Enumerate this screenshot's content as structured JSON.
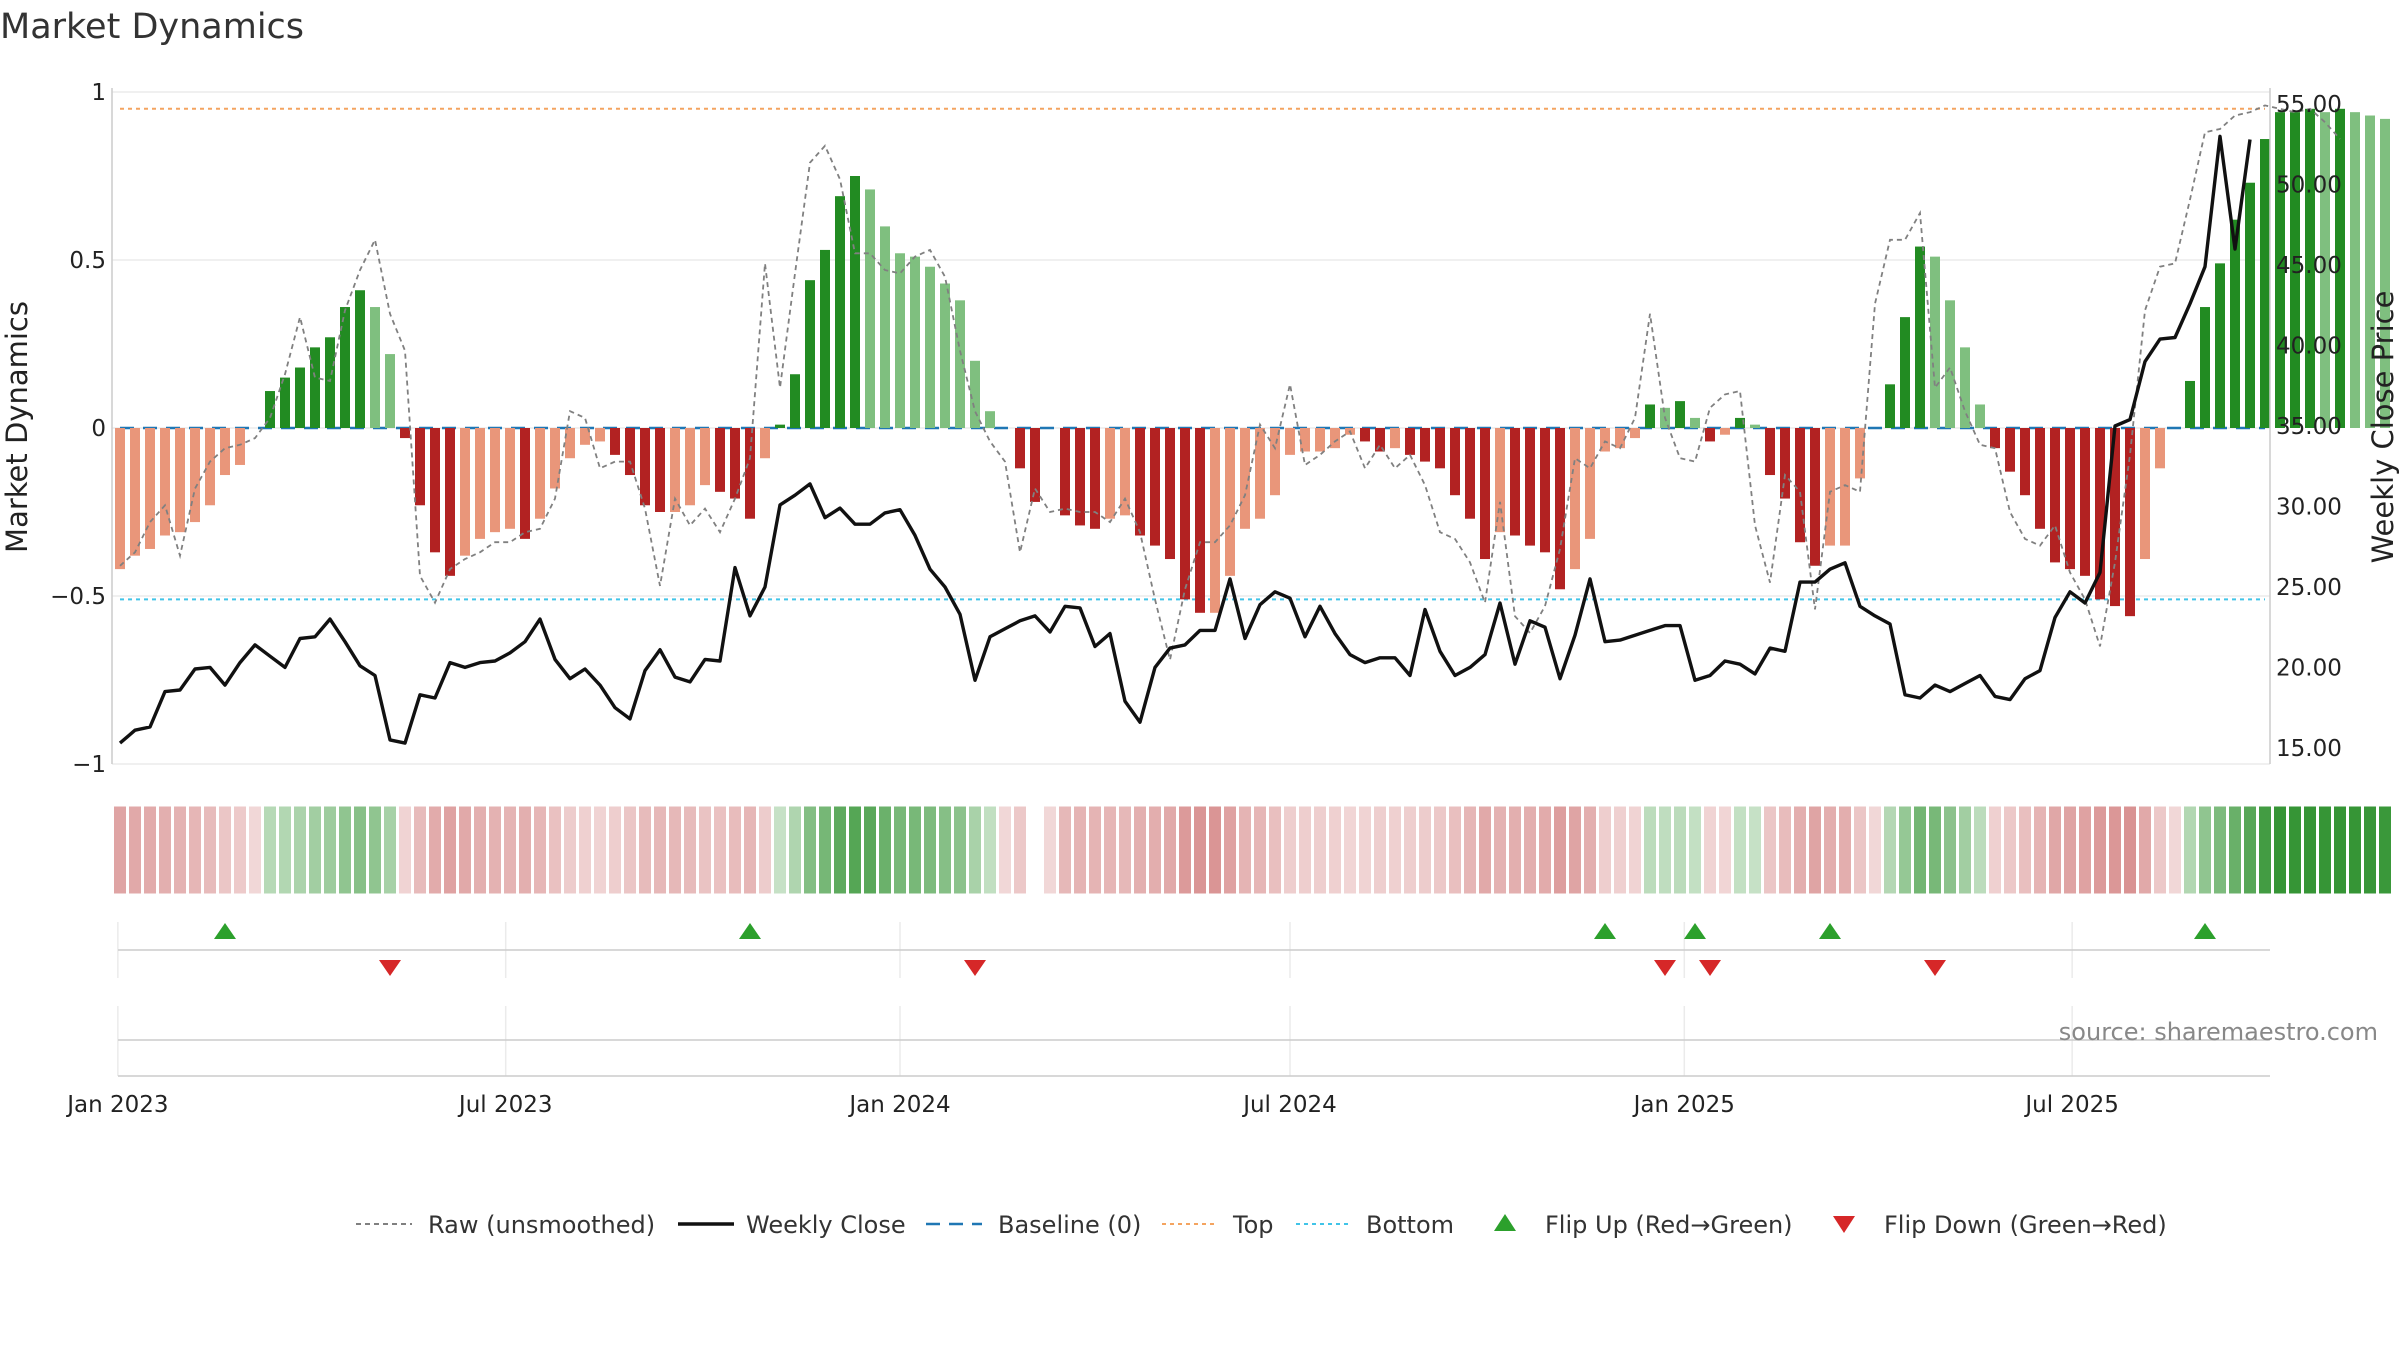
{
  "title": "Market Dynamics",
  "source": "source: sharemaestro.com",
  "chart_data": {
    "type": "bar",
    "x_start": "2023-01-02",
    "x_interval": "weekly",
    "x_ticks": [
      "Jan 2023",
      "Jul 2023",
      "Jan 2024",
      "Jul 2024",
      "Jan 2025",
      "Jul 2025"
    ],
    "y_left": {
      "label": "Market Dynamics",
      "range": [
        -1,
        1
      ],
      "ticks": [
        "1",
        "0.5",
        "0",
        "−0.5",
        "−1"
      ],
      "tick_values": [
        1,
        0.5,
        0,
        -0.5,
        -1
      ]
    },
    "y_right": {
      "label": "Weekly Close Price",
      "range": [
        14.0,
        56.0
      ],
      "ticks": [
        "55.00",
        "50.00",
        "45.00",
        "40.00",
        "35.00",
        "30.00",
        "25.00",
        "20.00",
        "15.00"
      ],
      "tick_values": [
        55,
        50,
        45,
        40,
        35,
        30,
        25,
        20,
        15
      ]
    },
    "reference_lines": {
      "baseline": 0,
      "top": 0.95,
      "bottom": -0.51
    },
    "colors": {
      "strong_red": "#B22222",
      "light_red": "#E9967A",
      "strong_green": "#228B22",
      "light_green": "#7FBF7F",
      "raw": "#808080",
      "close": "#111111",
      "baseline": "#1F77B4",
      "top": "#F4A460",
      "bottom": "#40C4E8",
      "flip_up": "#2CA02C",
      "flip_down": "#D62728"
    },
    "smoothed": [
      -0.42,
      -0.38,
      -0.36,
      -0.32,
      -0.31,
      -0.28,
      -0.23,
      -0.14,
      -0.11,
      0,
      0.11,
      0.15,
      0.18,
      0.24,
      0.27,
      0.36,
      0.41,
      0.36,
      0.22,
      -0.03,
      -0.23,
      -0.37,
      -0.44,
      -0.38,
      -0.33,
      -0.31,
      -0.3,
      -0.33,
      -0.27,
      -0.18,
      -0.09,
      -0.05,
      -0.04,
      -0.08,
      -0.14,
      -0.23,
      -0.25,
      -0.25,
      -0.23,
      -0.17,
      -0.19,
      -0.21,
      -0.27,
      -0.09,
      0.01,
      0.16,
      0.44,
      0.53,
      0.69,
      0.75,
      0.71,
      0.6,
      0.52,
      0.51,
      0.48,
      0.43,
      0.38,
      0.2,
      0.05,
      0,
      -0.12,
      -0.22,
      0,
      -0.26,
      -0.29,
      -0.3,
      -0.27,
      -0.26,
      -0.32,
      -0.35,
      -0.39,
      -0.51,
      -0.55,
      -0.55,
      -0.44,
      -0.3,
      -0.27,
      -0.2,
      -0.08,
      -0.07,
      -0.07,
      -0.06,
      -0.02,
      -0.04,
      -0.07,
      -0.06,
      -0.08,
      -0.1,
      -0.12,
      -0.2,
      -0.27,
      -0.39,
      -0.31,
      -0.32,
      -0.35,
      -0.37,
      -0.48,
      -0.42,
      -0.33,
      -0.07,
      -0.06,
      -0.03,
      0.07,
      0.06,
      0.08,
      0.03,
      -0.04,
      -0.02,
      0.03,
      0.01,
      -0.14,
      -0.21,
      -0.34,
      -0.41,
      -0.35,
      -0.35,
      -0.15,
      0,
      0.13,
      0.33,
      0.54,
      0.51,
      0.38,
      0.24,
      0.07,
      -0.06,
      -0.13,
      -0.2,
      -0.3,
      -0.4,
      -0.42,
      -0.44,
      -0.51,
      -0.53,
      -0.56,
      -0.39,
      -0.12,
      0,
      0.14,
      0.36,
      0.49,
      0.62,
      0.73,
      0.86,
      0.94,
      0.94,
      0.95,
      0.94,
      0.95,
      0.94,
      0.93,
      0.92
    ],
    "raw": [
      -0.41,
      -0.37,
      -0.28,
      -0.23,
      -0.38,
      -0.18,
      -0.1,
      -0.06,
      -0.05,
      -0.03,
      0.03,
      0.16,
      0.33,
      0.15,
      0.14,
      0.35,
      0.47,
      0.56,
      0.34,
      0.23,
      -0.44,
      -0.52,
      -0.42,
      -0.39,
      -0.37,
      -0.34,
      -0.34,
      -0.31,
      -0.3,
      -0.21,
      0.05,
      0.03,
      -0.12,
      -0.1,
      -0.1,
      -0.24,
      -0.47,
      -0.21,
      -0.29,
      -0.24,
      -0.31,
      -0.21,
      -0.09,
      0.49,
      0.12,
      0.46,
      0.79,
      0.84,
      0.74,
      0.52,
      0.52,
      0.47,
      0.46,
      0.51,
      0.53,
      0.45,
      0.23,
      0.05,
      -0.04,
      -0.1,
      -0.37,
      -0.18,
      -0.25,
      -0.24,
      -0.25,
      -0.25,
      -0.28,
      -0.21,
      -0.31,
      -0.51,
      -0.69,
      -0.48,
      -0.34,
      -0.34,
      -0.29,
      -0.2,
      0.01,
      -0.06,
      0.13,
      -0.11,
      -0.08,
      -0.04,
      -0.01,
      -0.12,
      -0.05,
      -0.12,
      -0.08,
      -0.17,
      -0.31,
      -0.33,
      -0.4,
      -0.52,
      -0.22,
      -0.56,
      -0.61,
      -0.53,
      -0.36,
      -0.09,
      -0.12,
      -0.04,
      -0.06,
      0.03,
      0.34,
      0.03,
      -0.09,
      -0.1,
      0.06,
      0.1,
      0.11,
      -0.29,
      -0.46,
      -0.14,
      -0.19,
      -0.54,
      -0.19,
      -0.17,
      -0.19,
      0.37,
      0.56,
      0.56,
      0.64,
      0.12,
      0.18,
      0.05,
      -0.05,
      -0.06,
      -0.25,
      -0.33,
      -0.35,
      -0.29,
      -0.43,
      -0.51,
      -0.65,
      -0.4,
      -0.08,
      0.35,
      0.48,
      0.49,
      0.68,
      0.88,
      0.89,
      0.93,
      0.94,
      0.96,
      0.95,
      0.94,
      0.95,
      0.91,
      0.86
    ],
    "close": [
      15.3,
      16.1,
      16.3,
      18.5,
      18.6,
      19.9,
      20.0,
      18.9,
      20.3,
      21.4,
      20.7,
      20.0,
      21.8,
      21.9,
      23.0,
      21.6,
      20.1,
      19.5,
      15.5,
      15.3,
      18.3,
      18.1,
      20.3,
      20.0,
      20.3,
      20.4,
      20.9,
      21.6,
      23.0,
      20.5,
      19.3,
      19.9,
      18.9,
      17.5,
      16.8,
      19.8,
      21.1,
      19.4,
      19.1,
      20.5,
      20.4,
      26.2,
      23.2,
      25.0,
      30.1,
      30.7,
      31.4,
      29.3,
      29.9,
      28.9,
      28.9,
      29.6,
      29.8,
      28.2,
      26.1,
      25.0,
      23.3,
      19.2,
      21.9,
      22.4,
      22.9,
      23.2,
      22.2,
      23.8,
      23.7,
      21.3,
      22.1,
      17.9,
      16.6,
      20.0,
      21.2,
      21.4,
      22.3,
      22.3,
      25.5,
      21.8,
      23.9,
      24.7,
      24.3,
      21.9,
      23.8,
      22.1,
      20.8,
      20.3,
      20.6,
      20.6,
      19.5,
      23.6,
      21.0,
      19.5,
      20.0,
      20.8,
      24.0,
      20.2,
      22.9,
      22.5,
      19.3,
      22.0,
      25.5,
      21.6,
      21.7,
      22.0,
      22.3,
      22.6,
      22.6,
      19.2,
      19.5,
      20.4,
      20.2,
      19.6,
      21.2,
      21.0,
      25.3,
      25.3,
      26.1,
      26.5,
      23.8,
      23.2,
      22.7,
      18.3,
      18.1,
      18.9,
      18.5,
      19.0,
      19.5,
      18.2,
      18.0,
      19.3,
      19.8,
      23.1,
      24.7,
      24.0,
      25.9,
      35.0,
      35.4,
      39.0,
      40.4,
      40.5,
      42.6,
      44.9,
      53.0,
      46.0,
      52.8
    ],
    "flips_up": [
      7,
      42,
      99,
      105,
      114,
      139
    ],
    "flips_down": [
      18,
      57,
      103,
      106,
      121
    ]
  },
  "legend": [
    {
      "label": "Raw (unsmoothed)",
      "icon": "dashed-gray-line"
    },
    {
      "label": "Weekly Close",
      "icon": "solid-black-line"
    },
    {
      "label": "Baseline (0)",
      "icon": "dashed-blue-line"
    },
    {
      "label": "Top",
      "icon": "dotted-orange-line"
    },
    {
      "label": "Bottom",
      "icon": "dotted-cyan-line"
    },
    {
      "label": "Flip Up (Red→Green)",
      "icon": "green-up-triangle"
    },
    {
      "label": "Flip Down (Green→Red)",
      "icon": "red-down-triangle"
    }
  ]
}
